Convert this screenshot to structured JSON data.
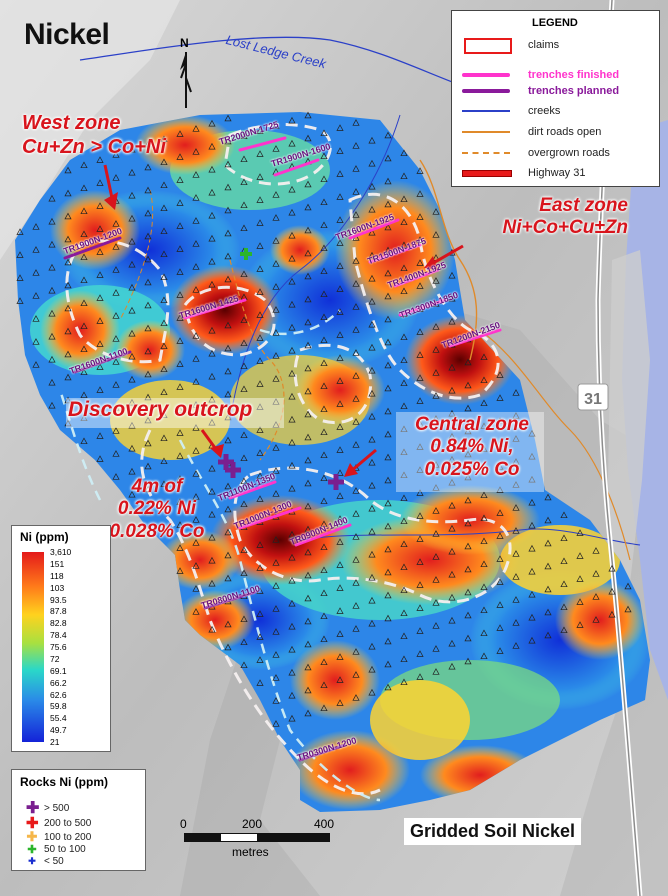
{
  "title": "Nickel",
  "north_label": "N",
  "creek_label": "Lost Ledge Creek",
  "highway_label": "31",
  "annotations": {
    "west_zone": [
      "West zone",
      "Cu+Zn > Co+Ni"
    ],
    "east_zone": [
      "East zone",
      "Ni+Co+Cu±Zn"
    ],
    "discovery": "Discovery outcrop",
    "central_zone": [
      "Central zone",
      "0.84% Ni,",
      "0.025% Co"
    ],
    "four_m": [
      "4m of",
      "0.22% Ni",
      "0.028% Co"
    ]
  },
  "legend": {
    "title": "LEGEND",
    "items": [
      {
        "label": "claims",
        "symbol": "red-box-icon"
      },
      {
        "label": "trenches finished",
        "symbol": "pink-line-icon",
        "color": "#ff33cc"
      },
      {
        "label": "trenches planned",
        "symbol": "purple-line-icon",
        "color": "#8a1a9b"
      },
      {
        "label": "creeks",
        "symbol": "blue-line-icon"
      },
      {
        "label": "dirt roads open",
        "symbol": "orange-line-icon"
      },
      {
        "label": "overgrown roads",
        "symbol": "orange-dashed-line-icon"
      },
      {
        "label": "Highway 31",
        "symbol": "red-highway-line-icon"
      }
    ]
  },
  "ni_scale": {
    "title": "Ni (ppm)",
    "values": [
      "3,610",
      "151",
      "118",
      "103",
      "93.5",
      "87.8",
      "82.8",
      "78.4",
      "75.6",
      "72",
      "69.1",
      "66.2",
      "62.6",
      "59.8",
      "55.4",
      "49.7",
      "21"
    ]
  },
  "rocks_legend": {
    "title": "Rocks Ni (ppm)",
    "items": [
      {
        "label": "> 500",
        "color": "#7a1f8f"
      },
      {
        "label": "200 to 500",
        "color": "#e81a1a"
      },
      {
        "label": "100 to 200",
        "color": "#f5b64a"
      },
      {
        "label": "50 to 100",
        "color": "#2bb52b"
      },
      {
        "label": "< 50",
        "color": "#1a2fd0"
      }
    ]
  },
  "scale_bar": {
    "ticks": [
      "0",
      "200",
      "400"
    ],
    "unit": "metres"
  },
  "footer_title": "Gridded Soil Nickel",
  "trenches": [
    "TR2000N-1725",
    "TR1900N-1600",
    "TR1900N-1200",
    "TR1600N-1925",
    "TR1500N-1875",
    "TR1400N-1925",
    "TR1300N-1850",
    "TR1200N-2150",
    "TR1600N-1425",
    "TR1600N-1100",
    "TR1100N-1350",
    "TR1000N-1300",
    "TR0900N-1400",
    "TR0800N-1100",
    "TR0300N-1200"
  ],
  "colors": {
    "high": "#e4231b",
    "mid": "#f8e23a",
    "low": "#1a3fe0",
    "claims": "#e81a1a"
  }
}
